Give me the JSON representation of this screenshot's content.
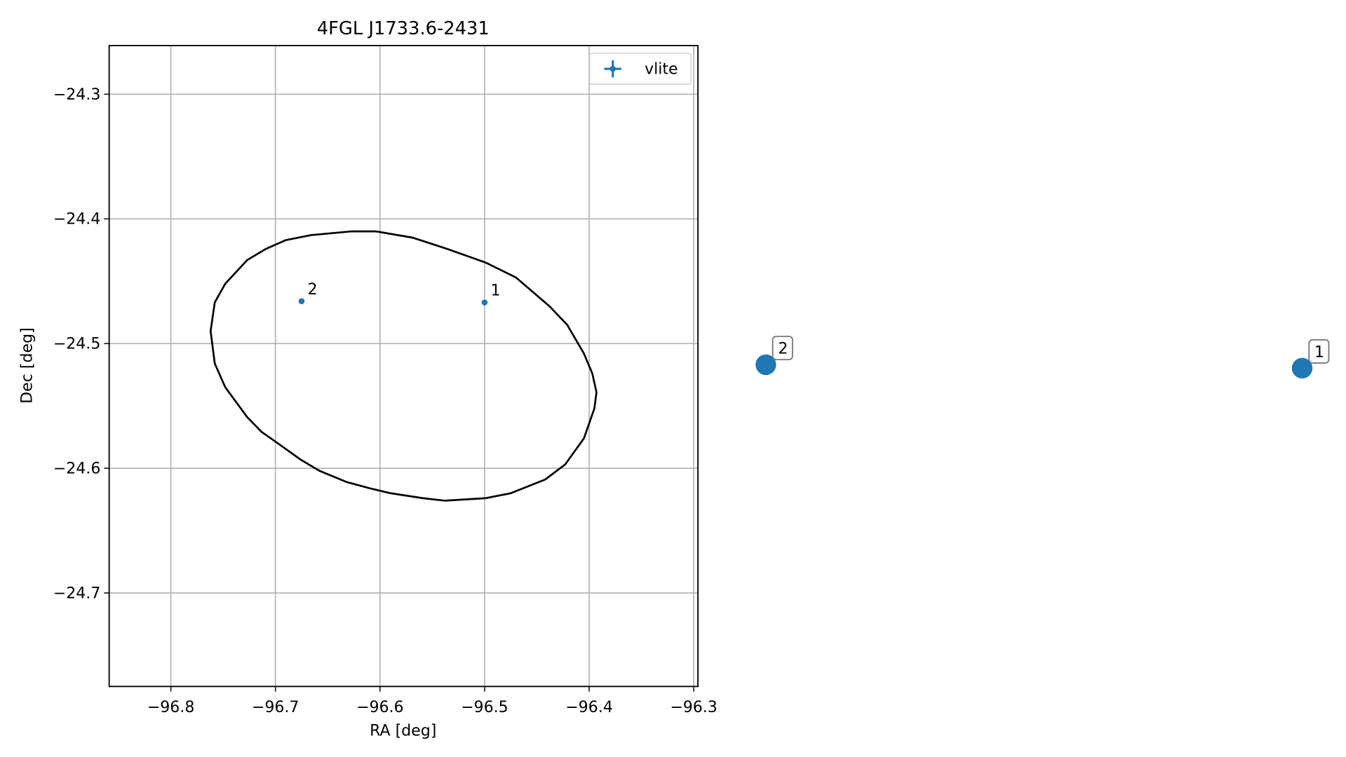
{
  "chart_data": {
    "type": "scatter",
    "title": "4FGL J1733.6-2431",
    "x_label": "RA [deg]",
    "y_label": "Dec [deg]",
    "xlim": [
      -96.859,
      -96.296
    ],
    "ylim": [
      -24.775,
      -24.261
    ],
    "xticks": [
      {
        "value": -96.8,
        "label": "−96.8"
      },
      {
        "value": -96.7,
        "label": "−96.7"
      },
      {
        "value": -96.6,
        "label": "−96.6"
      },
      {
        "value": -96.5,
        "label": "−96.5"
      },
      {
        "value": -96.4,
        "label": "−96.4"
      },
      {
        "value": -96.3,
        "label": "−96.3"
      }
    ],
    "yticks": [
      {
        "value": -24.3,
        "label": "−24.3"
      },
      {
        "value": -24.4,
        "label": "−24.4"
      },
      {
        "value": -24.5,
        "label": "−24.5"
      },
      {
        "value": -24.6,
        "label": "−24.6"
      },
      {
        "value": -24.7,
        "label": "−24.7"
      }
    ],
    "grid": true,
    "legend": "upper right",
    "series": [
      {
        "name": "vlite",
        "color": "#1f77b4",
        "x": [
          -96.5,
          -96.675
        ],
        "y": [
          -24.467,
          -24.466
        ],
        "labels": [
          "1",
          "2"
        ]
      }
    ],
    "ellipse": {
      "color": "#000000",
      "x": [
        -96.762,
        -96.758,
        -96.748,
        -96.727,
        -96.709,
        -96.69,
        -96.666,
        -96.627,
        -96.604,
        -96.569,
        -96.536,
        -96.499,
        -96.47,
        -96.438,
        -96.421,
        -96.405,
        -96.397,
        -96.393,
        -96.395,
        -96.405,
        -96.423,
        -96.442,
        -96.475,
        -96.499,
        -96.538,
        -96.559,
        -96.59,
        -96.61,
        -96.632,
        -96.658,
        -96.676,
        -96.701,
        -96.713,
        -96.727,
        -96.748,
        -96.758,
        -96.762
      ],
      "y": [
        -24.49,
        -24.467,
        -24.452,
        -24.433,
        -24.424,
        -24.417,
        -24.413,
        -24.41,
        -24.41,
        -24.415,
        -24.424,
        -24.435,
        -24.447,
        -24.47,
        -24.485,
        -24.508,
        -24.524,
        -24.539,
        -24.552,
        -24.576,
        -24.597,
        -24.609,
        -24.62,
        -24.624,
        -24.626,
        -24.624,
        -24.62,
        -24.616,
        -24.611,
        -24.602,
        -24.593,
        -24.578,
        -24.571,
        -24.559,
        -24.535,
        -24.516,
        -24.49
      ]
    }
  }
}
